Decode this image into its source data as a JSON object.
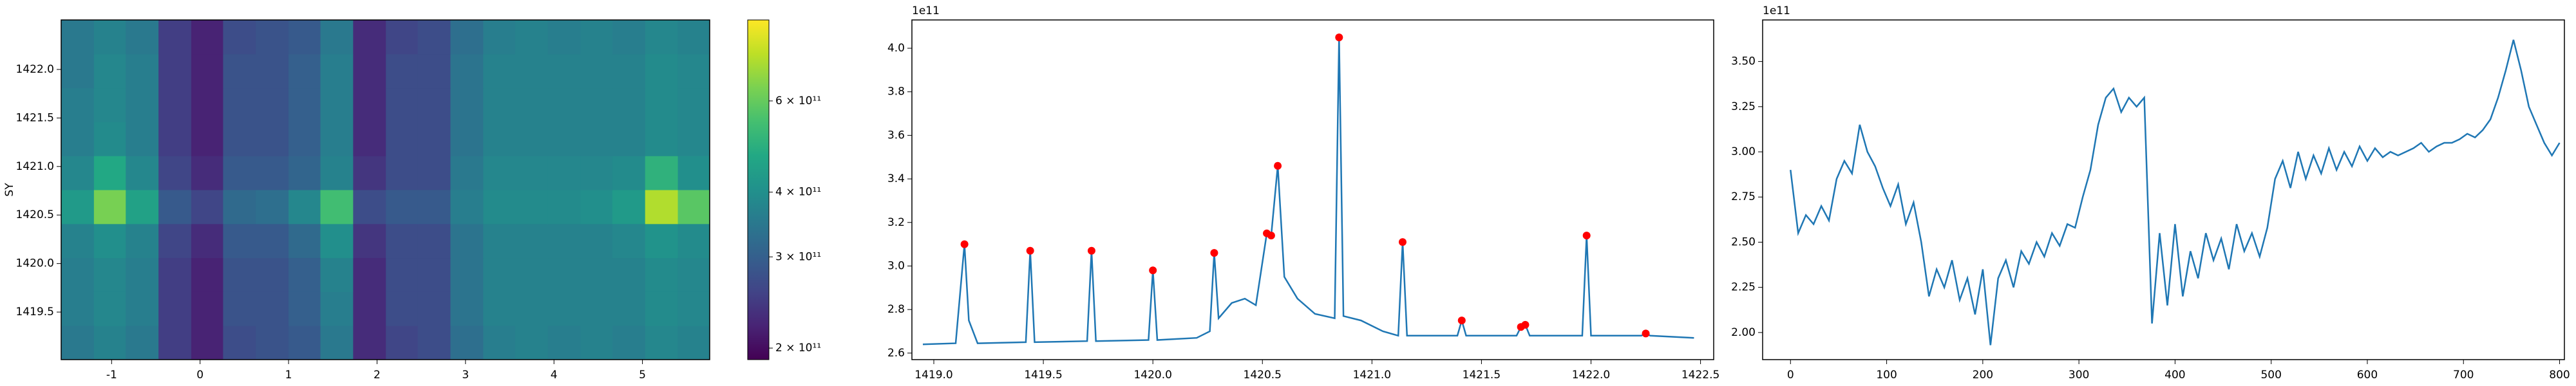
{
  "chart_data": [
    {
      "type": "heatmap",
      "ylabel": "SY",
      "xlim": [
        -1.57,
        5.76
      ],
      "xticks": [
        -1,
        0,
        1,
        2,
        3,
        4,
        5
      ],
      "ylim": [
        1419.01,
        1422.51
      ],
      "yticks": [
        {
          "value": 1419.5,
          "label": "1419.5"
        },
        {
          "value": 1420,
          "label": "1420.0"
        },
        {
          "value": 1420.5,
          "label": "1420.5"
        },
        {
          "value": 1421,
          "label": "1421.0"
        },
        {
          "value": 1421.5,
          "label": "1421.5"
        },
        {
          "value": 1422,
          "label": "1422.0"
        }
      ],
      "colormap": "viridis",
      "norm": "log",
      "clim": [
        190000000000.0,
        860000000000.0
      ],
      "colorbar_ticks": [
        {
          "value": 200000000000.0,
          "label": "2 × 10¹¹"
        },
        {
          "value": 300000000000.0,
          "label": "3 × 10¹¹"
        },
        {
          "value": 400000000000.0,
          "label": "4 × 10¹¹"
        },
        {
          "value": 600000000000.0,
          "label": "6 × 10¹¹"
        }
      ],
      "x_edges": [
        -1.57,
        -1.2,
        -0.84,
        -0.47,
        -0.1,
        0.26,
        0.63,
        1.0,
        1.36,
        1.73,
        2.1,
        2.46,
        2.83,
        3.2,
        3.56,
        3.93,
        4.3,
        4.66,
        5.03,
        5.4,
        5.76
      ],
      "y_edges": [
        1419.01,
        1419.36,
        1419.71,
        1420.06,
        1420.41,
        1420.76,
        1421.11,
        1421.46,
        1421.81,
        1422.16,
        1422.51
      ],
      "z": [
        [
          350000000000.0,
          370000000000.0,
          350000000000.0,
          250000000000.0,
          220000000000.0,
          270000000000.0,
          280000000000.0,
          290000000000.0,
          350000000000.0,
          230000000000.0,
          260000000000.0,
          270000000000.0,
          330000000000.0,
          360000000000.0,
          370000000000.0,
          360000000000.0,
          370000000000.0,
          360000000000.0,
          380000000000.0,
          370000000000.0
        ],
        [
          360000000000.0,
          380000000000.0,
          360000000000.0,
          250000000000.0,
          220000000000.0,
          280000000000.0,
          280000000000.0,
          300000000000.0,
          360000000000.0,
          230000000000.0,
          270000000000.0,
          270000000000.0,
          340000000000.0,
          370000000000.0,
          370000000000.0,
          370000000000.0,
          370000000000.0,
          370000000000.0,
          390000000000.0,
          380000000000.0
        ],
        [
          360000000000.0,
          380000000000.0,
          360000000000.0,
          250000000000.0,
          220000000000.0,
          280000000000.0,
          280000000000.0,
          300000000000.0,
          370000000000.0,
          230000000000.0,
          270000000000.0,
          270000000000.0,
          340000000000.0,
          370000000000.0,
          370000000000.0,
          370000000000.0,
          370000000000.0,
          370000000000.0,
          390000000000.0,
          380000000000.0
        ],
        [
          370000000000.0,
          400000000000.0,
          370000000000.0,
          260000000000.0,
          230000000000.0,
          290000000000.0,
          290000000000.0,
          320000000000.0,
          400000000000.0,
          240000000000.0,
          270000000000.0,
          270000000000.0,
          340000000000.0,
          370000000000.0,
          370000000000.0,
          370000000000.0,
          370000000000.0,
          380000000000.0,
          410000000000.0,
          390000000000.0
        ],
        [
          430000000000.0,
          630000000000.0,
          450000000000.0,
          290000000000.0,
          260000000000.0,
          320000000000.0,
          330000000000.0,
          380000000000.0,
          540000000000.0,
          270000000000.0,
          290000000000.0,
          290000000000.0,
          360000000000.0,
          390000000000.0,
          390000000000.0,
          390000000000.0,
          400000000000.0,
          430000000000.0,
          720000000000.0,
          580000000000.0
        ],
        [
          380000000000.0,
          470000000000.0,
          380000000000.0,
          260000000000.0,
          230000000000.0,
          290000000000.0,
          290000000000.0,
          310000000000.0,
          370000000000.0,
          240000000000.0,
          270000000000.0,
          270000000000.0,
          350000000000.0,
          380000000000.0,
          380000000000.0,
          380000000000.0,
          380000000000.0,
          390000000000.0,
          500000000000.0,
          400000000000.0
        ],
        [
          360000000000.0,
          390000000000.0,
          360000000000.0,
          250000000000.0,
          220000000000.0,
          280000000000.0,
          280000000000.0,
          300000000000.0,
          360000000000.0,
          230000000000.0,
          270000000000.0,
          270000000000.0,
          340000000000.0,
          370000000000.0,
          370000000000.0,
          370000000000.0,
          370000000000.0,
          370000000000.0,
          390000000000.0,
          380000000000.0
        ],
        [
          360000000000.0,
          380000000000.0,
          360000000000.0,
          250000000000.0,
          220000000000.0,
          280000000000.0,
          280000000000.0,
          300000000000.0,
          360000000000.0,
          230000000000.0,
          270000000000.0,
          270000000000.0,
          340000000000.0,
          370000000000.0,
          370000000000.0,
          370000000000.0,
          370000000000.0,
          370000000000.0,
          390000000000.0,
          380000000000.0
        ],
        [
          350000000000.0,
          380000000000.0,
          360000000000.0,
          250000000000.0,
          220000000000.0,
          280000000000.0,
          280000000000.0,
          300000000000.0,
          360000000000.0,
          230000000000.0,
          270000000000.0,
          270000000000.0,
          340000000000.0,
          370000000000.0,
          370000000000.0,
          370000000000.0,
          370000000000.0,
          370000000000.0,
          390000000000.0,
          380000000000.0
        ],
        [
          350000000000.0,
          370000000000.0,
          350000000000.0,
          250000000000.0,
          220000000000.0,
          270000000000.0,
          280000000000.0,
          290000000000.0,
          350000000000.0,
          230000000000.0,
          260000000000.0,
          270000000000.0,
          330000000000.0,
          360000000000.0,
          370000000000.0,
          360000000000.0,
          370000000000.0,
          360000000000.0,
          380000000000.0,
          370000000000.0
        ]
      ]
    },
    {
      "type": "line",
      "offset_text": "1e11",
      "xlim": [
        1418.9,
        1422.56
      ],
      "xticks": [
        {
          "value": 1419,
          "label": "1419.0"
        },
        1419.5,
        {
          "value": 1420,
          "label": "1420.0"
        },
        1420.5,
        {
          "value": 1421,
          "label": "1421.0"
        },
        1421.5,
        {
          "value": 1422,
          "label": "1422.0"
        },
        1422.5
      ],
      "ylim": [
        2.57,
        4.13
      ],
      "yticks": [
        2.6,
        2.8,
        {
          "value": 3,
          "label": "3.0"
        },
        3.2,
        3.4,
        3.6,
        3.8,
        {
          "value": 4,
          "label": "4.0"
        }
      ],
      "series": [
        {
          "color": "#1f77b4",
          "x": [
            1418.95,
            1419.1,
            1419.14,
            1419.16,
            1419.2,
            1419.42,
            1419.44,
            1419.46,
            1419.7,
            1419.72,
            1419.74,
            1419.98,
            1420.0,
            1420.02,
            1420.2,
            1420.26,
            1420.28,
            1420.3,
            1420.36,
            1420.42,
            1420.47,
            1420.52,
            1420.54,
            1420.57,
            1420.6,
            1420.66,
            1420.74,
            1420.83,
            1420.85,
            1420.87,
            1420.95,
            1421.05,
            1421.12,
            1421.14,
            1421.16,
            1421.39,
            1421.41,
            1421.43,
            1421.66,
            1421.68,
            1421.7,
            1421.72,
            1421.96,
            1421.98,
            1422.0,
            1422.23,
            1422.25,
            1422.27,
            1422.47
          ],
          "values": [
            2.64,
            2.645,
            3.1,
            2.75,
            2.645,
            2.65,
            3.07,
            2.65,
            2.655,
            3.07,
            2.655,
            2.66,
            2.98,
            2.66,
            2.67,
            2.7,
            3.06,
            2.76,
            2.83,
            2.85,
            2.82,
            3.15,
            3.14,
            3.46,
            2.95,
            2.85,
            2.78,
            2.76,
            4.05,
            2.77,
            2.75,
            2.7,
            2.68,
            3.11,
            2.68,
            2.68,
            2.75,
            2.68,
            2.68,
            2.72,
            2.73,
            2.68,
            2.68,
            3.14,
            2.68,
            2.68,
            2.69,
            2.68,
            2.67
          ]
        },
        {
          "color": "#ff0000",
          "linestyle": "none",
          "marker": "o",
          "x": [
            1419.14,
            1419.44,
            1419.72,
            1420.0,
            1420.28,
            1420.52,
            1420.54,
            1420.57,
            1420.85,
            1421.14,
            1421.41,
            1421.68,
            1421.7,
            1421.98,
            1422.25
          ],
          "values": [
            3.1,
            3.07,
            3.07,
            2.98,
            3.06,
            3.15,
            3.14,
            3.46,
            4.05,
            3.11,
            2.75,
            2.72,
            2.73,
            3.14,
            2.69
          ]
        }
      ]
    },
    {
      "type": "line",
      "offset_text": "1e11",
      "xlim": [
        -29,
        805
      ],
      "xticks": [
        0,
        100,
        200,
        300,
        400,
        500,
        600,
        700,
        800
      ],
      "ylim": [
        1.85,
        3.73
      ],
      "yticks": [
        {
          "value": 2,
          "label": "2.00"
        },
        2.25,
        {
          "value": 2.5,
          "label": "2.50"
        },
        2.75,
        {
          "value": 3,
          "label": "3.00"
        },
        3.25,
        {
          "value": 3.5,
          "label": "3.50"
        }
      ],
      "series": [
        {
          "color": "#1f77b4",
          "x": [
            0,
            8,
            16,
            24,
            32,
            40,
            48,
            56,
            64,
            72,
            80,
            88,
            96,
            104,
            112,
            120,
            128,
            136,
            144,
            152,
            160,
            168,
            176,
            184,
            192,
            200,
            208,
            216,
            224,
            232,
            240,
            248,
            256,
            264,
            272,
            280,
            288,
            296,
            304,
            312,
            320,
            328,
            336,
            344,
            352,
            360,
            368,
            376,
            384,
            392,
            400,
            408,
            416,
            424,
            432,
            440,
            448,
            456,
            464,
            472,
            480,
            488,
            496,
            504,
            512,
            520,
            528,
            536,
            544,
            552,
            560,
            568,
            576,
            584,
            592,
            600,
            608,
            616,
            624,
            632,
            640,
            648,
            656,
            664,
            672,
            680,
            688,
            696,
            704,
            712,
            720,
            728,
            736,
            744,
            752,
            760,
            768,
            776,
            784,
            792,
            800
          ],
          "values": [
            2.9,
            2.55,
            2.65,
            2.6,
            2.7,
            2.62,
            2.85,
            2.95,
            2.88,
            3.15,
            3.0,
            2.92,
            2.8,
            2.7,
            2.82,
            2.6,
            2.72,
            2.5,
            2.2,
            2.35,
            2.25,
            2.4,
            2.18,
            2.3,
            2.1,
            2.35,
            1.93,
            2.3,
            2.4,
            2.25,
            2.45,
            2.38,
            2.5,
            2.42,
            2.55,
            2.48,
            2.6,
            2.58,
            2.75,
            2.9,
            3.15,
            3.3,
            3.35,
            3.22,
            3.3,
            3.25,
            3.3,
            2.05,
            2.55,
            2.15,
            2.6,
            2.2,
            2.45,
            2.3,
            2.55,
            2.4,
            2.52,
            2.35,
            2.6,
            2.45,
            2.55,
            2.42,
            2.58,
            2.85,
            2.95,
            2.8,
            3.0,
            2.85,
            2.98,
            2.88,
            3.02,
            2.9,
            3.0,
            2.92,
            3.03,
            2.95,
            3.02,
            2.97,
            3.0,
            2.98,
            3.0,
            3.02,
            3.05,
            3.0,
            3.03,
            3.05,
            3.05,
            3.07,
            3.1,
            3.08,
            3.12,
            3.18,
            3.3,
            3.45,
            3.62,
            3.45,
            3.25,
            3.15,
            3.05,
            2.98,
            3.05
          ]
        }
      ]
    }
  ]
}
